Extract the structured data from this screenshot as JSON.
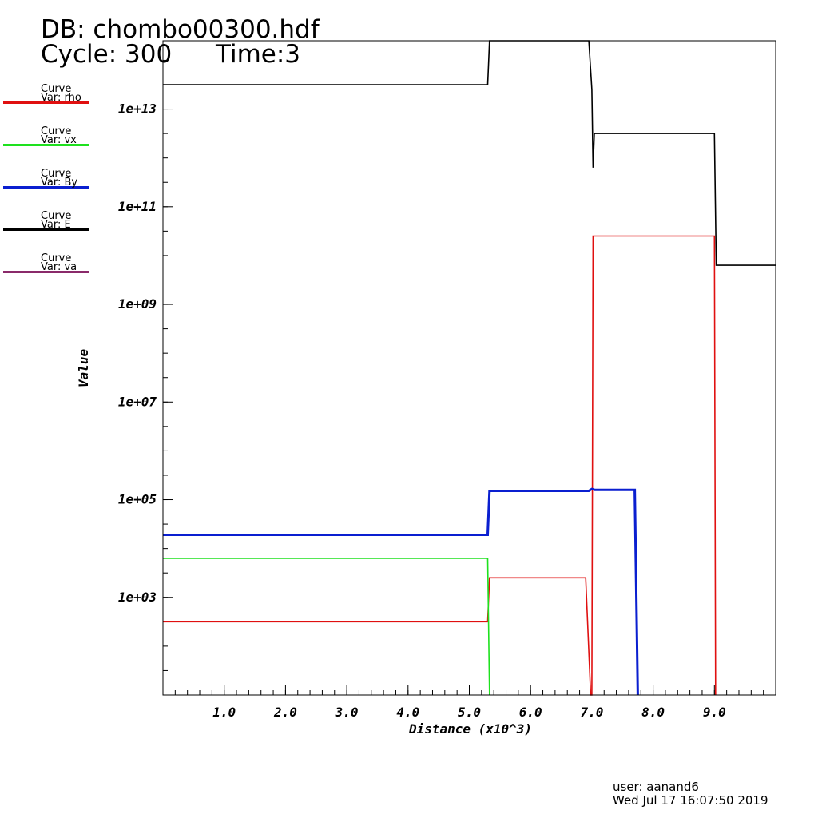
{
  "header": {
    "db_line": "DB: chombo00300.hdf",
    "cycle_line": "Cycle: 300",
    "time_line": "Time:3"
  },
  "legend": [
    {
      "line1": "Curve",
      "line2": "Var: rho",
      "color": "#e01010"
    },
    {
      "line1": "Curve",
      "line2": "Var: vx",
      "color": "#1ee11e"
    },
    {
      "line1": "Curve",
      "line2": "Var: By",
      "color": "#0a1fd0"
    },
    {
      "line1": "Curve",
      "line2": "Var: E",
      "color": "#000000"
    },
    {
      "line1": "Curve",
      "line2": "Var: va",
      "color": "#8a2a6a"
    }
  ],
  "footer": {
    "user": "user: aanand6",
    "date": "Wed Jul 17 16:07:50 2019"
  },
  "chart_data": {
    "type": "line",
    "xlabel": "Distance (x10^3)",
    "ylabel": "Value",
    "xlim": [
      0,
      10
    ],
    "ylim_log10": [
      1.0,
      14.4
    ],
    "yscale": "log",
    "xticks": [
      "1.0",
      "2.0",
      "3.0",
      "4.0",
      "5.0",
      "6.0",
      "7.0",
      "8.0",
      "9.0"
    ],
    "xtick_values": [
      1,
      2,
      3,
      4,
      5,
      6,
      7,
      8,
      9
    ],
    "yticks": [
      "1e+03",
      "1e+05",
      "1e+07",
      "1e+09",
      "1e+11",
      "1e+13"
    ],
    "ytick_log10": [
      3,
      5,
      7,
      9,
      11,
      13
    ],
    "series": [
      {
        "name": "rho",
        "color": "#e01010",
        "log10_points": [
          [
            0,
            2.5
          ],
          [
            5.3,
            2.5
          ],
          [
            5.33,
            3.4
          ],
          [
            6.9,
            3.4
          ],
          [
            6.98,
            1.0
          ],
          [
            7.0,
            1.0
          ],
          [
            7.02,
            10.4
          ],
          [
            9.0,
            10.4
          ],
          [
            9.02,
            1.0
          ]
        ]
      },
      {
        "name": "vx",
        "color": "#1ee11e",
        "log10_points": [
          [
            0,
            3.8
          ],
          [
            5.3,
            3.8
          ],
          [
            5.33,
            1.0
          ]
        ]
      },
      {
        "name": "By",
        "color": "#0a1fd0",
        "log10_points": [
          [
            0,
            4.28
          ],
          [
            5.3,
            4.28
          ],
          [
            5.33,
            5.18
          ],
          [
            6.95,
            5.18
          ],
          [
            7.0,
            5.22
          ],
          [
            7.05,
            5.2
          ],
          [
            7.7,
            5.2
          ],
          [
            7.75,
            1.0
          ]
        ]
      },
      {
        "name": "E",
        "color": "#000000",
        "log10_points": [
          [
            0,
            13.5
          ],
          [
            5.3,
            13.5
          ],
          [
            5.33,
            14.4
          ],
          [
            6.95,
            14.4
          ],
          [
            7.0,
            13.4
          ],
          [
            7.02,
            11.8
          ],
          [
            7.04,
            12.5
          ],
          [
            9.0,
            12.5
          ],
          [
            9.03,
            9.8
          ],
          [
            10,
            9.8
          ]
        ]
      },
      {
        "name": "va",
        "color": "#8a2a6a",
        "log10_points": []
      }
    ]
  }
}
